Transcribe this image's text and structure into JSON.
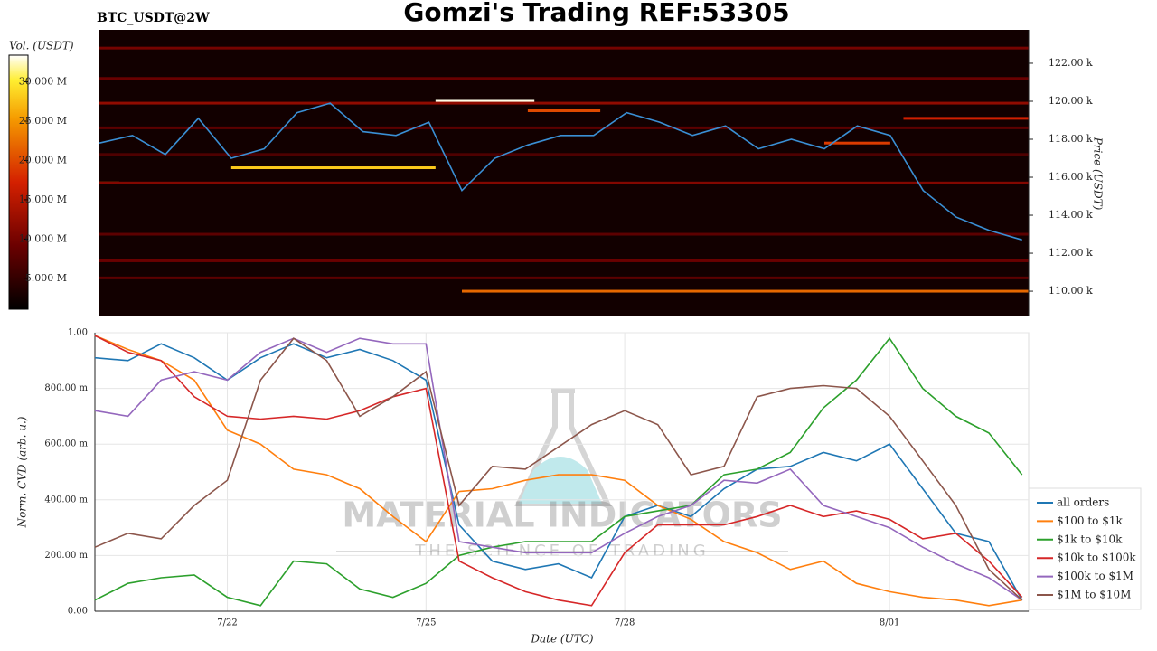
{
  "chart_data": [
    {
      "type": "heatmap",
      "title": "Gomzi's Trading REF:53305",
      "subtitle": "BTC_USDT@2W",
      "y_label": "Price (USDT)",
      "colorbar_label": "Vol. (USDT)",
      "xlim": [
        0,
        14.1
      ],
      "x": [
        0,
        0.5,
        1,
        1.5,
        2,
        2.5,
        3,
        3.5,
        4,
        4.5,
        5,
        5.5,
        6,
        6.5,
        7,
        7.5,
        8,
        8.5,
        9,
        9.5,
        10,
        10.5,
        11,
        11.5,
        12,
        12.5,
        13,
        13.5,
        14
      ],
      "series": [
        {
          "color": "#3a8fd4",
          "values": [
            117800,
            118200,
            117200,
            119100,
            117000,
            117500,
            119400,
            119900,
            118400,
            118200,
            118900,
            115300,
            117000,
            117700,
            118200,
            118200,
            119400,
            118900,
            118200,
            118700,
            117500,
            118000,
            117500,
            118700,
            118200,
            115300,
            113900,
            113200,
            112700
          ]
        }
      ],
      "ylim": [
        108670,
        123760
      ],
      "yticks": [
        {
          "value": 110000,
          "label": "110.00 k"
        },
        {
          "value": 112000,
          "label": "112.00 k"
        },
        {
          "value": 114000,
          "label": "114.00 k"
        },
        {
          "value": 116000,
          "label": "116.00 k"
        },
        {
          "value": 118000,
          "label": "118.00 k"
        },
        {
          "value": 120000,
          "label": "120.00 k"
        },
        {
          "value": 122000,
          "label": "122.00 k"
        }
      ],
      "clim": [
        1070000,
        33400000
      ],
      "cticks": [
        {
          "value": 5000000,
          "label": "5.000 M"
        },
        {
          "value": 10000000,
          "label": "10.000 M"
        },
        {
          "value": 15000000,
          "label": "15.000 M"
        },
        {
          "value": 20000000,
          "label": "20.000 M"
        },
        {
          "value": 25000000,
          "label": "25.000 M"
        },
        {
          "value": 30000000,
          "label": "30.000 M"
        }
      ],
      "bands": [
        {
          "price": 120000,
          "x": [
            5.1,
            6.6
          ],
          "volume": 33000000
        },
        {
          "price": 116500,
          "x": [
            2.0,
            5.1
          ],
          "volume": 28000000
        },
        {
          "price": 110000,
          "x": [
            5.5,
            14.1
          ],
          "volume": 22000000
        },
        {
          "price": 115700,
          "x": [
            0,
            0.3
          ],
          "volume": 24000000
        },
        {
          "price": 119500,
          "x": [
            6.5,
            7.6
          ],
          "volume": 20000000
        },
        {
          "price": 119100,
          "x": [
            12.2,
            14.1
          ],
          "volume": 17000000
        },
        {
          "price": 117800,
          "x": [
            11.0,
            12.0
          ],
          "volume": 19000000
        },
        {
          "price": 119900,
          "x": [
            0,
            14.1
          ],
          "volume": 12000000
        },
        {
          "price": 121200,
          "x": [
            0,
            14.1
          ],
          "volume": 9000000
        },
        {
          "price": 122800,
          "x": [
            0,
            14.1
          ],
          "volume": 10000000
        },
        {
          "price": 115700,
          "x": [
            0,
            14.1
          ],
          "volume": 11000000
        },
        {
          "price": 113000,
          "x": [
            0,
            14.1
          ],
          "volume": 8000000
        },
        {
          "price": 111600,
          "x": [
            0,
            14.1
          ],
          "volume": 9000000
        },
        {
          "price": 110700,
          "x": [
            0,
            14.1
          ],
          "volume": 8000000
        },
        {
          "price": 117200,
          "x": [
            0,
            14.1
          ],
          "volume": 7000000
        },
        {
          "price": 118600,
          "x": [
            0,
            14.1
          ],
          "volume": 8000000
        }
      ]
    },
    {
      "type": "line",
      "y_label": "Norm. CVD (arb. u.)",
      "x_label": "Date (UTC)",
      "xlim": [
        0,
        14.1
      ],
      "xticks": [
        {
          "value": 2,
          "label": "7/22"
        },
        {
          "value": 5,
          "label": "7/25"
        },
        {
          "value": 8,
          "label": "7/28"
        },
        {
          "value": 12,
          "label": "8/01"
        }
      ],
      "ylim": [
        0,
        1
      ],
      "yticks": [
        {
          "value": 0,
          "label": "0.00"
        },
        {
          "value": 0.2,
          "label": "200.00 m"
        },
        {
          "value": 0.4,
          "label": "400.00 m"
        },
        {
          "value": 0.6,
          "label": "600.00 m"
        },
        {
          "value": 0.8,
          "label": "800.00 m"
        },
        {
          "value": 1,
          "label": "1.00"
        }
      ],
      "grid": true,
      "legend": "right",
      "annotations": [
        "MATERIAL INDICATORS",
        "THE SCIENCE OF TRADING"
      ],
      "x": [
        0,
        0.5,
        1,
        1.5,
        2,
        2.5,
        3,
        3.5,
        4,
        4.5,
        5,
        5.5,
        6,
        6.5,
        7,
        7.5,
        8,
        8.5,
        9,
        9.5,
        10,
        10.5,
        11,
        11.5,
        12,
        12.5,
        13,
        13.5,
        14
      ],
      "series": [
        {
          "name": "all orders",
          "color": "#1f77b4",
          "values": [
            0.91,
            0.9,
            0.96,
            0.91,
            0.83,
            0.91,
            0.96,
            0.91,
            0.94,
            0.9,
            0.83,
            0.31,
            0.18,
            0.15,
            0.17,
            0.12,
            0.34,
            0.38,
            0.34,
            0.44,
            0.51,
            0.52,
            0.57,
            0.54,
            0.6,
            0.44,
            0.28,
            0.25,
            0.04
          ]
        },
        {
          "name": "$100 to $1k",
          "color": "#ff7f0e",
          "values": [
            0.99,
            0.94,
            0.9,
            0.83,
            0.65,
            0.6,
            0.51,
            0.49,
            0.44,
            0.34,
            0.25,
            0.43,
            0.44,
            0.47,
            0.49,
            0.49,
            0.47,
            0.38,
            0.33,
            0.25,
            0.21,
            0.15,
            0.18,
            0.1,
            0.07,
            0.05,
            0.04,
            0.02,
            0.04
          ]
        },
        {
          "name": "$1k to $10k",
          "color": "#2ca02c",
          "values": [
            0.04,
            0.1,
            0.12,
            0.13,
            0.05,
            0.02,
            0.18,
            0.17,
            0.08,
            0.05,
            0.1,
            0.2,
            0.23,
            0.25,
            0.25,
            0.25,
            0.34,
            0.36,
            0.38,
            0.49,
            0.51,
            0.57,
            0.73,
            0.83,
            0.98,
            0.8,
            0.7,
            0.64,
            0.49
          ]
        },
        {
          "name": "$10k to $100k",
          "color": "#d62728",
          "values": [
            0.99,
            0.93,
            0.9,
            0.77,
            0.7,
            0.69,
            0.7,
            0.69,
            0.72,
            0.77,
            0.8,
            0.18,
            0.12,
            0.07,
            0.04,
            0.02,
            0.21,
            0.31,
            0.31,
            0.31,
            0.34,
            0.38,
            0.34,
            0.36,
            0.33,
            0.26,
            0.28,
            0.18,
            0.05
          ]
        },
        {
          "name": "$100k to $1M",
          "color": "#9467bd",
          "values": [
            0.72,
            0.7,
            0.83,
            0.86,
            0.83,
            0.93,
            0.98,
            0.93,
            0.98,
            0.96,
            0.96,
            0.25,
            0.23,
            0.21,
            0.21,
            0.21,
            0.28,
            0.34,
            0.38,
            0.47,
            0.46,
            0.51,
            0.38,
            0.34,
            0.3,
            0.23,
            0.17,
            0.12,
            0.04
          ]
        },
        {
          "name": "$1M to $10M",
          "color": "#8c564b",
          "values": [
            0.23,
            0.28,
            0.26,
            0.38,
            0.47,
            0.83,
            0.98,
            0.9,
            0.7,
            0.77,
            0.86,
            0.38,
            0.52,
            0.51,
            0.59,
            0.67,
            0.72,
            0.67,
            0.49,
            0.52,
            0.77,
            0.8,
            0.81,
            0.8,
            0.7,
            0.54,
            0.38,
            0.15,
            0.04
          ]
        }
      ]
    }
  ]
}
